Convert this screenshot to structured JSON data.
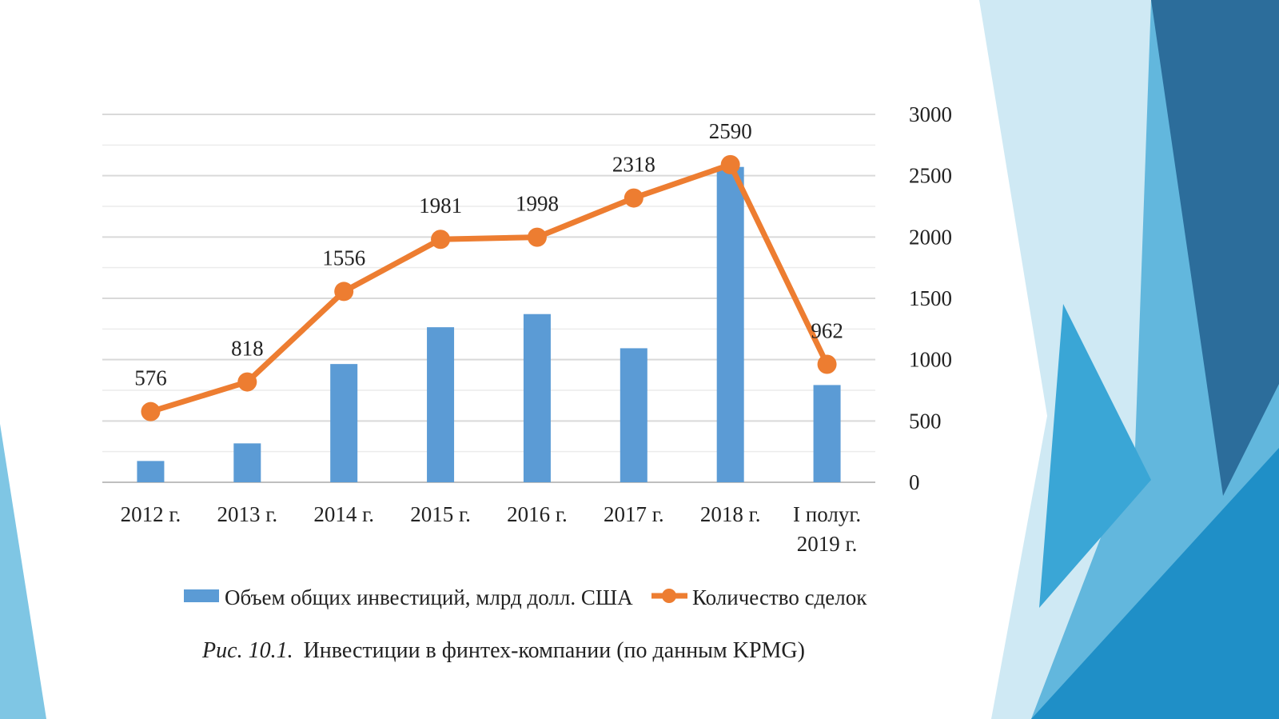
{
  "colors": {
    "bar": "#5b9bd5",
    "line": "#ed7d31",
    "grid": "#d9d9d9",
    "text": "#222222"
  },
  "chart_data": {
    "type": "bar",
    "categories": [
      "2012 г.",
      "2013 г.",
      "2014 г.",
      "2015 г.",
      "2016 г.",
      "2017 г.",
      "2018 г.",
      "I полуг. 2019 г."
    ],
    "category_lines": [
      [
        "2012 г."
      ],
      [
        "2013 г."
      ],
      [
        "2014 г."
      ],
      [
        "2015 г."
      ],
      [
        "2016 г."
      ],
      [
        "2017 г."
      ],
      [
        "2018 г."
      ],
      [
        "I полуг.",
        "2019 г."
      ]
    ],
    "series": [
      {
        "name": "Объем общих инвестиций, млрд долл. США",
        "type": "bar",
        "values": [
          4.05,
          7.4,
          22.5,
          29.5,
          32.0,
          25.5,
          60.0,
          18.5
        ],
        "ylim": [
          0,
          70
        ]
      },
      {
        "name": "Количество сделок",
        "type": "line",
        "values": [
          576,
          818,
          1556,
          1981,
          1998,
          2318,
          2590,
          962
        ],
        "axis": "right",
        "ylim": [
          0,
          3000
        ],
        "ticks": [
          0,
          500,
          1000,
          1500,
          2000,
          2500,
          3000
        ],
        "data_labels": [
          "576",
          "818",
          "1556",
          "1981",
          "1998",
          "2318",
          "2590",
          "962"
        ]
      }
    ],
    "grid": true,
    "legend": "bottom"
  },
  "caption": {
    "figure": "Рис. 10.1.",
    "text": "Инвестиции в финтех-компании (по данным KPMG)"
  }
}
